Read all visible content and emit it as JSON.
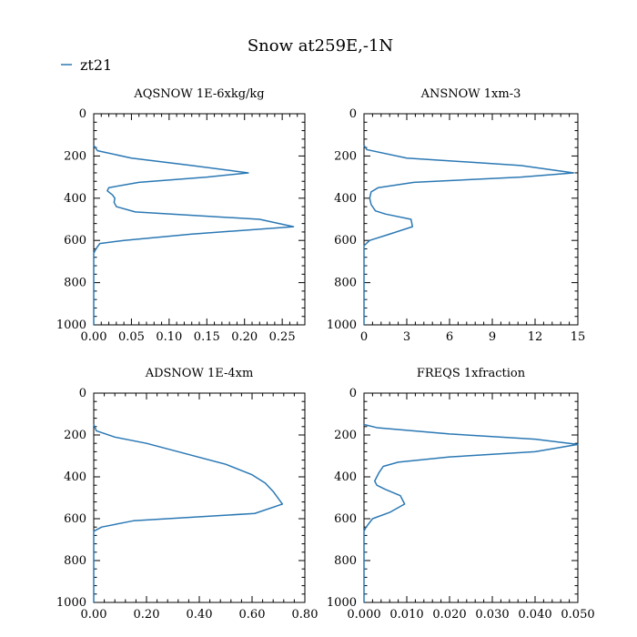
{
  "title": "Snow at259E,-1N",
  "legend": {
    "label": "zt21",
    "color": "#2a78b4",
    "placement": "top-left"
  },
  "chart_data": [
    {
      "type": "line",
      "title": "AQSNOW  1E-6xkg/kg",
      "xlim": [
        0,
        0.28
      ],
      "ylim": [
        1000,
        0
      ],
      "xticks": [
        0,
        0.05,
        0.1,
        0.15,
        0.2,
        0.25
      ],
      "xtick_labels": [
        "0.00",
        "0.05",
        "0.10",
        "0.15",
        "0.20",
        "0.25"
      ],
      "yticks": [
        0,
        200,
        400,
        600,
        800,
        1000
      ],
      "ytick_labels": [
        "0",
        "200",
        "400",
        "600",
        "800",
        "1000"
      ],
      "series": [
        {
          "name": "zt21",
          "points": [
            [
              0.0,
              150
            ],
            [
              0.005,
              175
            ],
            [
              0.05,
              210
            ],
            [
              0.13,
              245
            ],
            [
              0.205,
              280
            ],
            [
              0.15,
              300
            ],
            [
              0.06,
              325
            ],
            [
              0.02,
              350
            ],
            [
              0.018,
              365
            ],
            [
              0.025,
              385
            ],
            [
              0.028,
              400
            ],
            [
              0.027,
              420
            ],
            [
              0.03,
              440
            ],
            [
              0.055,
              465
            ],
            [
              0.22,
              500
            ],
            [
              0.265,
              535
            ],
            [
              0.13,
              570
            ],
            [
              0.04,
              600
            ],
            [
              0.008,
              615
            ],
            [
              0.003,
              640
            ],
            [
              0.0,
              660
            ],
            [
              0.0,
              1000
            ]
          ]
        }
      ]
    },
    {
      "type": "line",
      "title": "ANSNOW  1xm-3",
      "xlim": [
        0,
        15
      ],
      "ylim": [
        1000,
        0
      ],
      "xticks": [
        0,
        3,
        6,
        9,
        12,
        15
      ],
      "xtick_labels": [
        "0",
        "3",
        "6",
        "9",
        "12",
        "15"
      ],
      "yticks": [
        0,
        200,
        400,
        600,
        800,
        1000
      ],
      "ytick_labels": [
        "0",
        "200",
        "400",
        "600",
        "800",
        "1000"
      ],
      "series": [
        {
          "name": "zt21",
          "points": [
            [
              0.0,
              150
            ],
            [
              0.2,
              170
            ],
            [
              3.0,
              210
            ],
            [
              11.0,
              245
            ],
            [
              14.7,
              280
            ],
            [
              11.0,
              300
            ],
            [
              3.5,
              325
            ],
            [
              1.0,
              350
            ],
            [
              0.5,
              370
            ],
            [
              0.4,
              400
            ],
            [
              0.5,
              430
            ],
            [
              0.8,
              460
            ],
            [
              1.5,
              475
            ],
            [
              3.3,
              500
            ],
            [
              3.4,
              535
            ],
            [
              1.8,
              570
            ],
            [
              0.4,
              600
            ],
            [
              0.0,
              625
            ],
            [
              0.0,
              1000
            ]
          ]
        }
      ]
    },
    {
      "type": "line",
      "title": "ADSNOW  1E-4xm",
      "xlim": [
        0,
        0.8
      ],
      "ylim": [
        1000,
        0
      ],
      "xticks": [
        0,
        0.2,
        0.4,
        0.6,
        0.8
      ],
      "xtick_labels": [
        "0.00",
        "0.20",
        "0.40",
        "0.60",
        "0.80"
      ],
      "yticks": [
        0,
        200,
        400,
        600,
        800,
        1000
      ],
      "ytick_labels": [
        "0",
        "200",
        "400",
        "600",
        "800",
        "1000"
      ],
      "series": [
        {
          "name": "zt21",
          "points": [
            [
              0.0,
              150
            ],
            [
              0.01,
              180
            ],
            [
              0.08,
              210
            ],
            [
              0.2,
              240
            ],
            [
              0.35,
              290
            ],
            [
              0.5,
              340
            ],
            [
              0.6,
              390
            ],
            [
              0.65,
              430
            ],
            [
              0.68,
              470
            ],
            [
              0.715,
              530
            ],
            [
              0.61,
              575
            ],
            [
              0.15,
              610
            ],
            [
              0.03,
              640
            ],
            [
              0.0,
              660
            ],
            [
              0.0,
              1000
            ]
          ]
        }
      ]
    },
    {
      "type": "line",
      "title": "FREQS  1xfraction",
      "xlim": [
        0,
        0.05
      ],
      "ylim": [
        1000,
        0
      ],
      "xticks": [
        0,
        0.01,
        0.02,
        0.03,
        0.04,
        0.05
      ],
      "xtick_labels": [
        "0.000",
        "0.010",
        "0.020",
        "0.030",
        "0.040",
        "0.050"
      ],
      "yticks": [
        0,
        200,
        400,
        600,
        800,
        1000
      ],
      "ytick_labels": [
        "0",
        "200",
        "400",
        "600",
        "800",
        "1000"
      ],
      "series": [
        {
          "name": "zt21",
          "points": [
            [
              0.0,
              150
            ],
            [
              0.003,
              165
            ],
            [
              0.02,
              195
            ],
            [
              0.04,
              220
            ],
            [
              0.05,
              245
            ],
            [
              0.04,
              280
            ],
            [
              0.02,
              305
            ],
            [
              0.008,
              330
            ],
            [
              0.0045,
              350
            ],
            [
              0.0035,
              380
            ],
            [
              0.0025,
              420
            ],
            [
              0.003,
              440
            ],
            [
              0.005,
              460
            ],
            [
              0.0085,
              490
            ],
            [
              0.0095,
              530
            ],
            [
              0.006,
              570
            ],
            [
              0.002,
              600
            ],
            [
              0.0005,
              640
            ],
            [
              0.0,
              660
            ],
            [
              0.0,
              1000
            ]
          ]
        }
      ]
    }
  ]
}
